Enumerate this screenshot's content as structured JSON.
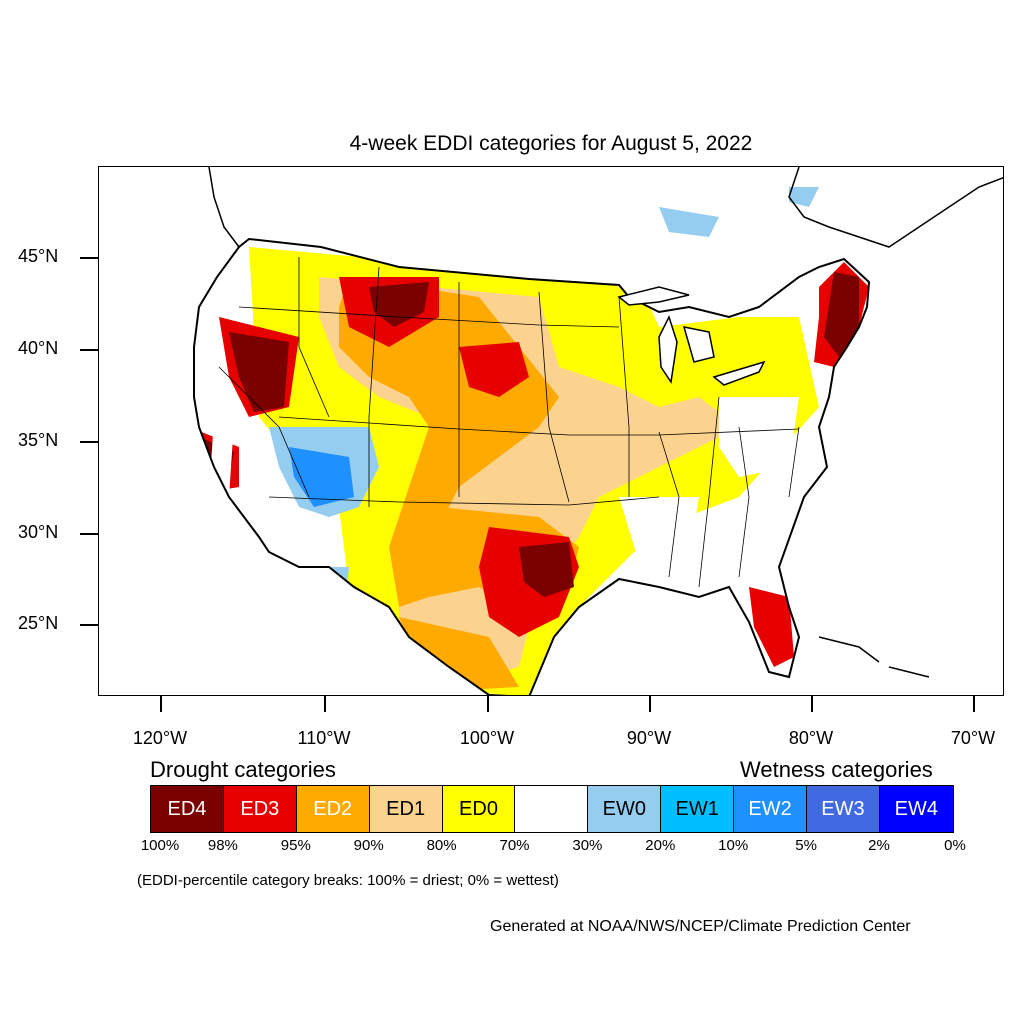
{
  "title": "4-week EDDI categories for August 5, 2022",
  "lat_labels": [
    "45°N",
    "40°N",
    "35°N",
    "30°N",
    "25°N"
  ],
  "lon_labels": [
    "120°W",
    "110°W",
    "100°W",
    "90°W",
    "80°W",
    "70°W"
  ],
  "legend": {
    "drought_heading": "Drought categories",
    "wetness_heading": "Wetness categories",
    "categories": [
      {
        "label": "ED4",
        "color": "#7a0000",
        "text_color": "#ffffff"
      },
      {
        "label": "ED3",
        "color": "#e60000",
        "text_color": "#ffffff"
      },
      {
        "label": "ED2",
        "color": "#ffaa00",
        "text_color": "#ffffff"
      },
      {
        "label": "ED1",
        "color": "#fcd38e",
        "text_color": "#000000"
      },
      {
        "label": "ED0",
        "color": "#ffff00",
        "text_color": "#000000"
      },
      {
        "label": "",
        "color": "#ffffff",
        "text_color": "#000000"
      },
      {
        "label": "EW0",
        "color": "#94cdef",
        "text_color": "#000000"
      },
      {
        "label": "EW1",
        "color": "#00bfff",
        "text_color": "#000000"
      },
      {
        "label": "EW2",
        "color": "#1e90ff",
        "text_color": "#ffffff"
      },
      {
        "label": "EW3",
        "color": "#4169e1",
        "text_color": "#ffffff"
      },
      {
        "label": "EW4",
        "color": "#0000ff",
        "text_color": "#ffffff"
      }
    ],
    "percent_breaks": [
      "100%",
      "98%",
      "95%",
      "90%",
      "80%",
      "70%",
      "30%",
      "20%",
      "10%",
      "5%",
      "2%",
      "0%"
    ]
  },
  "note": "(EDDI-percentile category breaks: 100% = driest; 0% = wettest)",
  "credit": "Generated at NOAA/NWS/NCEP/Climate Prediction Center"
}
